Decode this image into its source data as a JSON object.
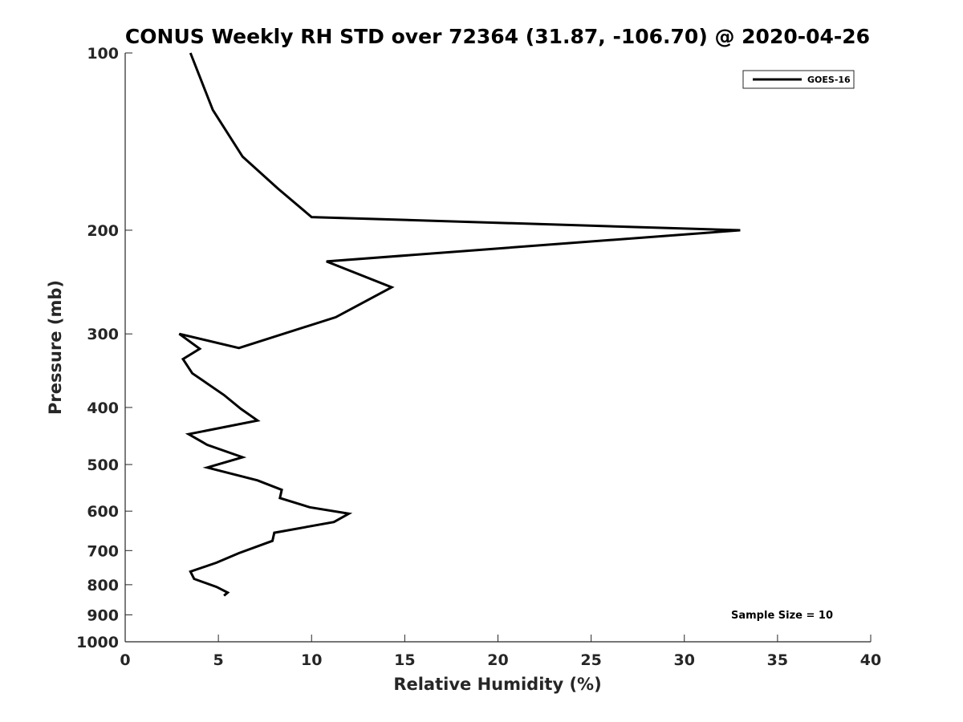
{
  "chart_data": {
    "type": "line",
    "title": "CONUS Weekly RH STD over 72364 (31.87, -106.70) @ 2020-04-26",
    "xlabel": "Relative Humidity (%)",
    "ylabel": "Pressure (mb)",
    "xlim": [
      0,
      40
    ],
    "ylim": [
      100,
      1000
    ],
    "y_scale": "log",
    "y_reversed": false,
    "x_ticks": [
      0,
      5,
      10,
      15,
      20,
      25,
      30,
      35,
      40
    ],
    "y_ticks": [
      100,
      200,
      300,
      400,
      500,
      600,
      700,
      800,
      900,
      1000
    ],
    "grid": false,
    "legend_position": "top-right",
    "series": [
      {
        "name": "GOES-16",
        "color": "#000000",
        "points": [
          [
            3.5,
            100
          ],
          [
            4.7,
            125
          ],
          [
            6.3,
            150
          ],
          [
            8.2,
            170
          ],
          [
            10.0,
            190
          ],
          [
            33.0,
            200
          ],
          [
            10.8,
            226
          ],
          [
            14.3,
            250
          ],
          [
            11.3,
            281
          ],
          [
            6.1,
            317
          ],
          [
            2.9,
            300
          ],
          [
            4.0,
            318
          ],
          [
            3.1,
            331
          ],
          [
            3.6,
            350
          ],
          [
            5.3,
            381
          ],
          [
            6.2,
            402
          ],
          [
            7.1,
            421
          ],
          [
            3.4,
            444
          ],
          [
            4.4,
            463
          ],
          [
            6.3,
            486
          ],
          [
            4.4,
            506
          ],
          [
            7.1,
            532
          ],
          [
            8.4,
            552
          ],
          [
            8.3,
            570
          ],
          [
            9.9,
            591
          ],
          [
            12.0,
            606
          ],
          [
            11.2,
            626
          ],
          [
            8.0,
            653
          ],
          [
            7.9,
            674
          ],
          [
            6.1,
            707
          ],
          [
            4.9,
            734
          ],
          [
            3.5,
            760
          ],
          [
            3.7,
            782
          ],
          [
            4.9,
            807
          ],
          [
            5.5,
            825
          ],
          [
            5.3,
            835
          ]
        ]
      }
    ],
    "annotations": [
      "Sample Size = 10"
    ]
  }
}
